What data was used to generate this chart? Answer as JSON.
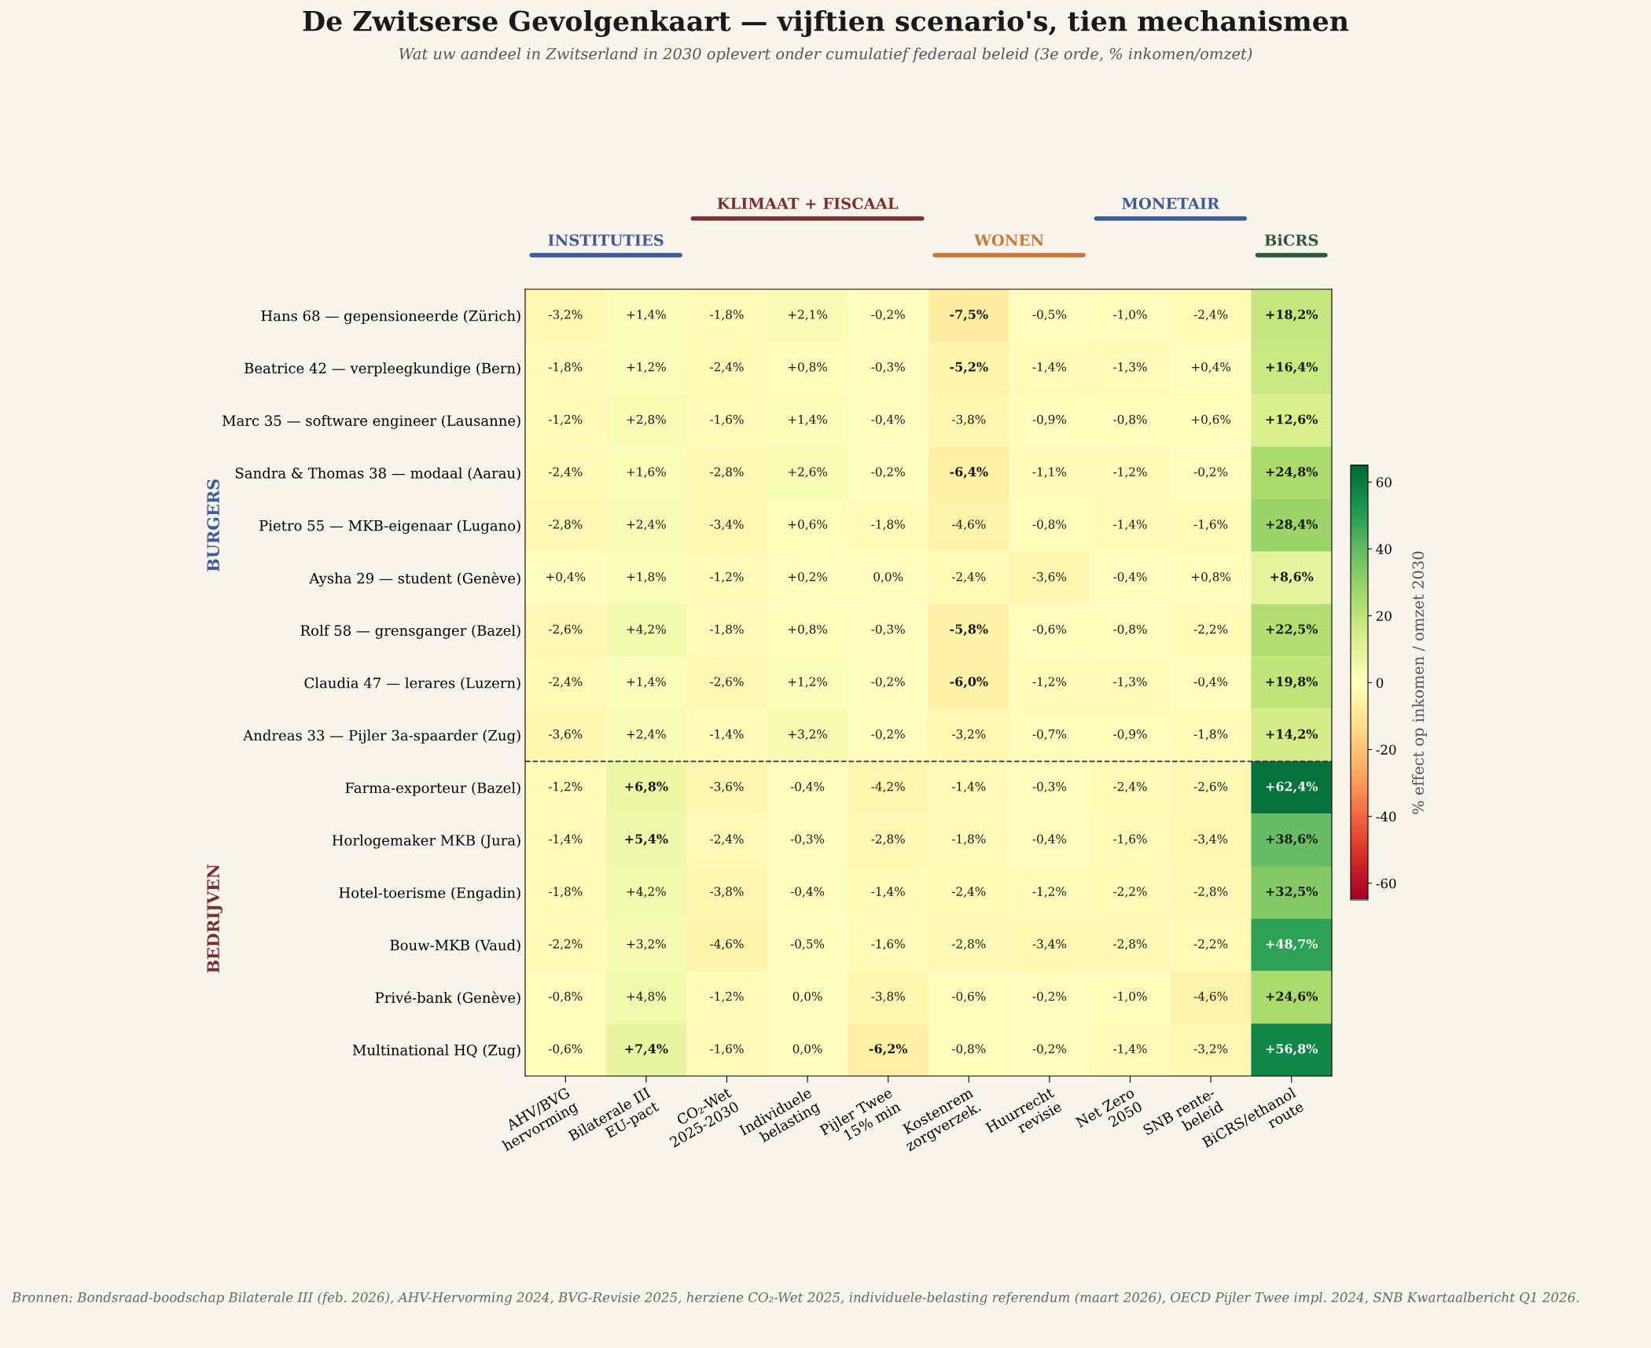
{
  "chart_data": {
    "type": "heatmap",
    "title": "De Zwitserse Gevolgenkaart — vijftien scenario's, tien mechanismen",
    "subtitle": "Wat uw aandeel in Zwitserland in 2030 oplevert onder cumulatief federaal beleid (3e orde, % inkomen/omzet)",
    "categories": [
      "AHV/BVG\nhervorming",
      "Bilaterale III\nEU-pact",
      "CO₂-Wet\n2025-2030",
      "Individuele\nbelasting",
      "Pijler Twee\n15% min",
      "Kostenrem\nzorgverzek.",
      "Huurrecht\nrevisie",
      "Net Zero\n2050",
      "SNB rente-\nbeleid",
      "BiCRS/ethanol\nroute"
    ],
    "y_categories": [
      "Hans 68 — gepensioneerde (Zürich)",
      "Beatrice 42 — verpleegkundige (Bern)",
      "Marc 35 — software engineer (Lausanne)",
      "Sandra & Thomas 38 — modaal (Aarau)",
      "Pietro 55 — MKB-eigenaar (Lugano)",
      "Aysha 29 — student (Genève)",
      "Rolf 58 — grensganger (Bazel)",
      "Claudia 47 — lerares (Luzern)",
      "Andreas 33 — Pijler 3a-spaarder (Zug)",
      "Farma-exporteur (Bazel)",
      "Horlogemaker MKB (Jura)",
      "Hotel-toerisme (Engadin)",
      "Bouw-MKB (Vaud)",
      "Privé-bank (Genève)",
      "Multinational HQ (Zug)"
    ],
    "cells": [
      [
        -3.2,
        1.4,
        -1.8,
        2.1,
        -0.2,
        -7.5,
        -0.5,
        -1.0,
        -2.4,
        18.2
      ],
      [
        -1.8,
        1.2,
        -2.4,
        0.8,
        -0.3,
        -5.2,
        -1.4,
        -1.3,
        0.4,
        16.4
      ],
      [
        -1.2,
        2.8,
        -1.6,
        1.4,
        -0.4,
        -3.8,
        -0.9,
        -0.8,
        0.6,
        12.6
      ],
      [
        -2.4,
        1.6,
        -2.8,
        2.6,
        -0.2,
        -6.4,
        -1.1,
        -1.2,
        -0.2,
        24.8
      ],
      [
        -2.8,
        2.4,
        -3.4,
        0.6,
        -1.8,
        -4.6,
        -0.8,
        -1.4,
        -1.6,
        28.4
      ],
      [
        0.4,
        1.8,
        -1.2,
        0.2,
        0.0,
        -2.4,
        -3.6,
        -0.4,
        0.8,
        8.6
      ],
      [
        -2.6,
        4.2,
        -1.8,
        0.8,
        -0.3,
        -5.8,
        -0.6,
        -0.8,
        -2.2,
        22.5
      ],
      [
        -2.4,
        1.4,
        -2.6,
        1.2,
        -0.2,
        -6.0,
        -1.2,
        -1.3,
        -0.4,
        19.8
      ],
      [
        -3.6,
        2.4,
        -1.4,
        3.2,
        -0.2,
        -3.2,
        -0.7,
        -0.9,
        -1.8,
        14.2
      ],
      [
        -1.2,
        6.8,
        -3.6,
        -0.4,
        -4.2,
        -1.4,
        -0.3,
        -2.4,
        -2.6,
        62.4
      ],
      [
        -1.4,
        5.4,
        -2.4,
        -0.3,
        -2.8,
        -1.8,
        -0.4,
        -1.6,
        -3.4,
        38.6
      ],
      [
        -1.8,
        4.2,
        -3.8,
        -0.4,
        -1.4,
        -2.4,
        -1.2,
        -2.2,
        -2.8,
        32.5
      ],
      [
        -2.2,
        3.2,
        -4.6,
        -0.5,
        -1.6,
        -2.8,
        -3.4,
        -2.8,
        -2.2,
        48.7
      ],
      [
        -0.8,
        4.8,
        -1.2,
        0.0,
        -3.8,
        -0.6,
        -0.2,
        -1.0,
        -4.6,
        24.6
      ],
      [
        -0.6,
        7.4,
        -1.6,
        0.0,
        -6.2,
        -0.8,
        -0.2,
        -1.4,
        -3.2,
        56.8
      ]
    ],
    "cell_labels": [
      [
        "-3,2%",
        "+1,4%",
        "-1,8%",
        "+2,1%",
        "-0,2%",
        "-7,5%",
        "-0,5%",
        "-1,0%",
        "-2,4%",
        "+18,2%"
      ],
      [
        "-1,8%",
        "+1,2%",
        "-2,4%",
        "+0,8%",
        "-0,3%",
        "-5,2%",
        "-1,4%",
        "-1,3%",
        "+0,4%",
        "+16,4%"
      ],
      [
        "-1,2%",
        "+2,8%",
        "-1,6%",
        "+1,4%",
        "-0,4%",
        "-3,8%",
        "-0,9%",
        "-0,8%",
        "+0,6%",
        "+12,6%"
      ],
      [
        "-2,4%",
        "+1,6%",
        "-2,8%",
        "+2,6%",
        "-0,2%",
        "-6,4%",
        "-1,1%",
        "-1,2%",
        "-0,2%",
        "+24,8%"
      ],
      [
        "-2,8%",
        "+2,4%",
        "-3,4%",
        "+0,6%",
        "-1,8%",
        "-4,6%",
        "-0,8%",
        "-1,4%",
        "-1,6%",
        "+28,4%"
      ],
      [
        "+0,4%",
        "+1,8%",
        "-1,2%",
        "+0,2%",
        "0,0%",
        "-2,4%",
        "-3,6%",
        "-0,4%",
        "+0,8%",
        "+8,6%"
      ],
      [
        "-2,6%",
        "+4,2%",
        "-1,8%",
        "+0,8%",
        "-0,3%",
        "-5,8%",
        "-0,6%",
        "-0,8%",
        "-2,2%",
        "+22,5%"
      ],
      [
        "-2,4%",
        "+1,4%",
        "-2,6%",
        "+1,2%",
        "-0,2%",
        "-6,0%",
        "-1,2%",
        "-1,3%",
        "-0,4%",
        "+19,8%"
      ],
      [
        "-3,6%",
        "+2,4%",
        "-1,4%",
        "+3,2%",
        "-0,2%",
        "-3,2%",
        "-0,7%",
        "-0,9%",
        "-1,8%",
        "+14,2%"
      ],
      [
        "-1,2%",
        "+6,8%",
        "-3,6%",
        "-0,4%",
        "-4,2%",
        "-1,4%",
        "-0,3%",
        "-2,4%",
        "-2,6%",
        "+62,4%"
      ],
      [
        "-1,4%",
        "+5,4%",
        "-2,4%",
        "-0,3%",
        "-2,8%",
        "-1,8%",
        "-0,4%",
        "-1,6%",
        "-3,4%",
        "+38,6%"
      ],
      [
        "-1,8%",
        "+4,2%",
        "-3,8%",
        "-0,4%",
        "-1,4%",
        "-2,4%",
        "-1,2%",
        "-2,2%",
        "-2,8%",
        "+32,5%"
      ],
      [
        "-2,2%",
        "+3,2%",
        "-4,6%",
        "-0,5%",
        "-1,6%",
        "-2,8%",
        "-3,4%",
        "-2,8%",
        "-2,2%",
        "+48,7%"
      ],
      [
        "-0,8%",
        "+4,8%",
        "-1,2%",
        "0,0%",
        "-3,8%",
        "-0,6%",
        "-0,2%",
        "-1,0%",
        "-4,6%",
        "+24,6%"
      ],
      [
        "-0,6%",
        "+7,4%",
        "-1,6%",
        "0,0%",
        "-6,2%",
        "-0,8%",
        "-0,2%",
        "-1,4%",
        "-3,2%",
        "+56,8%"
      ]
    ],
    "clim": [
      -65,
      65
    ],
    "cticks": [
      -60,
      -40,
      -20,
      0,
      20,
      40,
      60
    ],
    "clabel": "% effect op inkomen / omzet 2030",
    "annotations": [
      "INSTITUTIES",
      "KLIMAAT + FISCAAL",
      "WONEN",
      "MONETAIR",
      "BiCRS",
      "BURGERS",
      "BEDRIJVEN",
      "Bronnen: Bondsraad-boodschap Bilaterale III (feb. 2026), AHV-Hervorming 2024, BVG-Revisie 2025, herziene CO₂-Wet 2025, individuele-belasting referendum (maart 2026), OECD Pijler Twee impl. 2024, SNB Kwartaalbericht Q1 2026."
    ]
  }
}
